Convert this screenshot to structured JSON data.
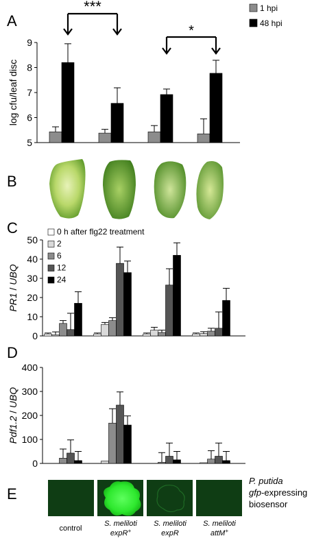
{
  "panels": {
    "a": "A",
    "b": "B",
    "c": "C",
    "d": "D",
    "e": "E"
  },
  "chart_data": [
    {
      "type": "bar",
      "panel": "A",
      "ylabel": "log cfu/leaf disc",
      "ylim": [
        5,
        9
      ],
      "yticks": [
        5,
        6,
        7,
        8,
        9
      ],
      "categories": [
        "",
        "",
        "",
        ""
      ],
      "series": [
        {
          "name": "1 hpi",
          "color": "#8c8c8c",
          "values": [
            5.43,
            5.38,
            5.43,
            5.35
          ],
          "errors": [
            0.2,
            0.15,
            0.25,
            0.6
          ]
        },
        {
          "name": "48 hpi",
          "color": "#000000",
          "values": [
            8.2,
            6.57,
            6.92,
            7.77
          ],
          "errors": [
            0.75,
            0.62,
            0.22,
            0.52
          ]
        }
      ],
      "legend": "top-right",
      "annotations": [
        "***",
        "*"
      ]
    },
    {
      "type": "bar",
      "panel": "C",
      "ylabel": "PR1 / UBQ",
      "ylim": [
        0,
        50
      ],
      "yticks": [
        0,
        10,
        20,
        30,
        40,
        50
      ],
      "categories": [
        "",
        "",
        "",
        ""
      ],
      "series": [
        {
          "name": "0 h after flg22 treatment",
          "color": "#ffffff",
          "values": [
            1,
            1,
            1,
            1
          ],
          "errors": [
            0.5,
            0.5,
            0.5,
            0.5
          ]
        },
        {
          "name": "2",
          "color": "#d9d9d9",
          "values": [
            0.6,
            6,
            3,
            1.2
          ],
          "errors": [
            1.5,
            1.0,
            1.5,
            1.0
          ]
        },
        {
          "name": "6",
          "color": "#8c8c8c",
          "values": [
            6.5,
            8,
            1.8,
            2.5
          ],
          "errors": [
            1.5,
            1.5,
            1.2,
            1.5
          ]
        },
        {
          "name": "12",
          "color": "#555555",
          "values": [
            3.3,
            37.8,
            26.5,
            4
          ],
          "errors": [
            8.5,
            8.5,
            8.5,
            8.5
          ]
        },
        {
          "name": "24",
          "color": "#000000",
          "values": [
            17,
            33,
            42,
            18.5
          ],
          "errors": [
            6,
            6,
            6.5,
            6.3
          ]
        }
      ],
      "legend": "top-left"
    },
    {
      "type": "bar",
      "panel": "D",
      "ylabel": "Pdf1.2 / UBQ",
      "ylim": [
        0,
        400
      ],
      "yticks": [
        0,
        100,
        200,
        300,
        400
      ],
      "categories": [
        "",
        "",
        "",
        ""
      ],
      "series": [
        {
          "name": "0",
          "color": "#ffffff",
          "values": [
            0,
            0,
            0,
            0
          ],
          "errors": [
            0,
            0,
            0,
            0
          ]
        },
        {
          "name": "2",
          "color": "#d9d9d9",
          "values": [
            0,
            10,
            0,
            3
          ],
          "errors": [
            0,
            0,
            0,
            0
          ]
        },
        {
          "name": "6",
          "color": "#8c8c8c",
          "values": [
            22,
            168,
            5,
            18
          ],
          "errors": [
            38,
            60,
            40,
            35
          ]
        },
        {
          "name": "12",
          "color": "#555555",
          "values": [
            43,
            243,
            30,
            30
          ],
          "errors": [
            55,
            55,
            55,
            55
          ]
        },
        {
          "name": "24",
          "color": "#000000",
          "values": [
            12,
            160,
            15,
            12
          ],
          "errors": [
            38,
            38,
            35,
            38
          ]
        }
      ]
    }
  ],
  "images_b": {
    "leaves": [
      "leaf-1",
      "leaf-2",
      "leaf-3",
      "leaf-4"
    ]
  },
  "biosensor": {
    "label_line1": "P. putida",
    "label_line2_italic": "gfp",
    "label_line2_rest": "-expressing",
    "label_line3": "biosensor"
  },
  "x_labels": [
    {
      "line1": "control",
      "line2": "",
      "italic": false
    },
    {
      "line1": "S. meliloti",
      "line2": "expR",
      "sup": "+",
      "italic": true
    },
    {
      "line1": "S. meliloti",
      "line2": "expR",
      "sup": "",
      "italic": true
    },
    {
      "line1": "S. meliloti",
      "line2": "attM",
      "sup": "+",
      "italic": true
    }
  ]
}
